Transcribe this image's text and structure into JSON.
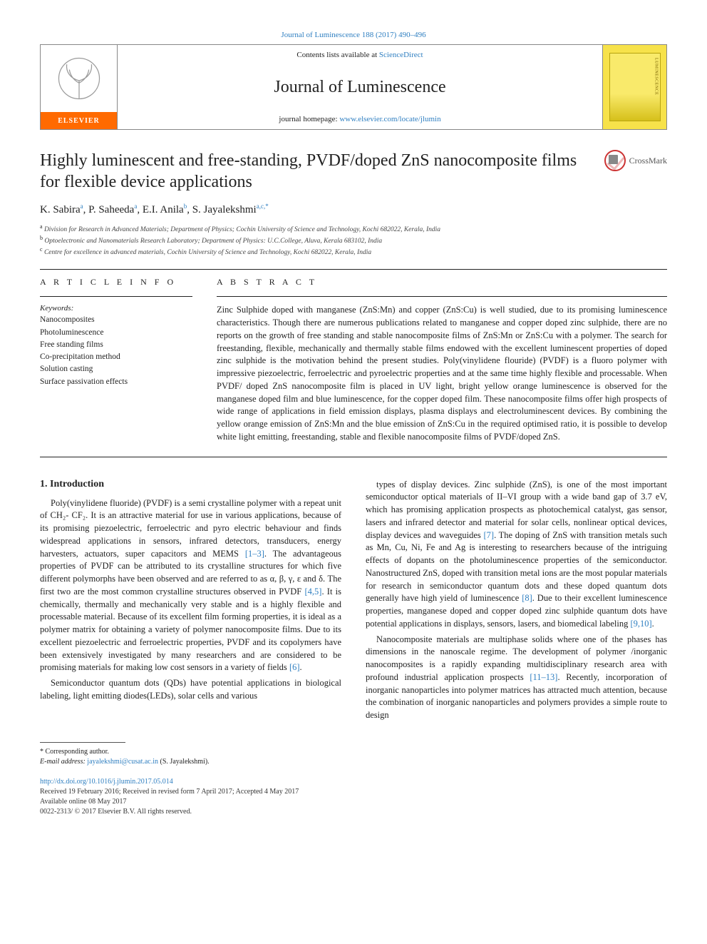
{
  "journal": {
    "citation_line": "Journal of Luminescence 188 (2017) 490–496",
    "contents_prefix": "Contents lists available at ",
    "contents_link": "ScienceDirect",
    "name": "Journal of Luminescence",
    "homepage_prefix": "journal homepage: ",
    "homepage_url": "www.elsevier.com/locate/jlumin",
    "publisher_logo": "ELSEVIER"
  },
  "crossmark_label": "CrossMark",
  "title": "Highly luminescent and free-standing, PVDF/doped ZnS nanocomposite films for flexible device applications",
  "authors_html": "K. Sabira<sup>a</sup>, P. Saheeda<sup>a</sup>, E.I. Anila<sup>b</sup>, S. Jayalekshmi<sup>a,c,*</sup>",
  "affiliations": [
    {
      "sup": "a",
      "text": "Division for Research in Advanced Materials; Department of Physics; Cochin University of Science and Technology, Kochi 682022, Kerala, India"
    },
    {
      "sup": "b",
      "text": "Optoelectronic and Nanomaterials Research Laboratory; Department of Physics: U.C.College, Aluva, Kerala 683102, India"
    },
    {
      "sup": "c",
      "text": "Centre for excellence in advanced materials, Cochin University of Science and Technology, Kochi 682022, Kerala, India"
    }
  ],
  "article_info": {
    "heading": "A R T I C L E  I N F O",
    "keywords_label": "Keywords:",
    "keywords": [
      "Nanocomposites",
      "Photoluminescence",
      "Free standing films",
      "Co-precipitation method",
      "Solution casting",
      "Surface passivation effects"
    ]
  },
  "abstract": {
    "heading": "A B S T R A C T",
    "text": "Zinc Sulphide doped with manganese (ZnS:Mn) and copper (ZnS:Cu) is well studied, due to its promising luminescence characteristics. Though there are numerous publications related to manganese and copper doped zinc sulphide, there are no reports on the growth of free standing and stable nanocomposite films of ZnS:Mn or ZnS:Cu with a polymer. The search for freestanding, flexible, mechanically and thermally stable films endowed with the excellent luminescent properties of doped zinc sulphide is the motivation behind the present studies. Poly(vinylidene flouride) (PVDF) is a fluoro polymer with impressive piezoelectric, ferroelectric and pyroelectric properties and at the same time highly flexible and processable. When PVDF/ doped ZnS nanocomposite film is placed in UV light, bright yellow orange luminescence is observed for the manganese doped film and blue luminescence, for the copper doped film. These nanocomposite films offer high prospects of wide range of applications in field emission displays, plasma displays and electroluminescent devices. By combining the yellow orange emission of ZnS:Mn and the blue emission of ZnS:Cu in the required optimised ratio, it is possible to develop white light emitting, freestanding, stable and flexible nanocomposite films of PVDF/doped ZnS."
  },
  "sections": {
    "intro_heading": "1. Introduction",
    "left_paras": [
      "Poly(vinylidene fluoride) (PVDF) is a semi crystalline polymer with a repeat unit of CH₂- CF₂. It is an attractive material for use in various applications, because of its promising piezoelectric, ferroelectric and pyro electric behaviour and finds widespread applications in sensors, infrared detectors, transducers, energy harvesters, actuators, super capacitors and MEMS [1–3]. The advantageous properties of PVDF can be attributed to its crystalline structures for which five different polymorphs have been observed and are referred to as α, β, γ, ε and δ. The first two are the most common crystalline structures observed in PVDF [4,5]. It is chemically, thermally and mechanically very stable and is a highly flexible and processable material. Because of its excellent film forming properties, it is ideal as a polymer matrix for obtaining a variety of polymer nanocomposite films. Due to its excellent piezoelectric and ferroelectric properties, PVDF and its copolymers have been extensively investigated by many researchers and are considered to be promising materials for making low cost sensors in a variety of fields [6].",
      "Semiconductor quantum dots (QDs) have potential applications in biological labeling, light emitting diodes(LEDs), solar cells and various"
    ],
    "right_paras": [
      "types of display devices. Zinc sulphide (ZnS), is one of the most important semiconductor optical materials of II–VI group with a wide band gap of 3.7 eV, which has promising application prospects as photochemical catalyst, gas sensor, lasers and infrared detector and material for solar cells, nonlinear optical devices, display devices and waveguides [7]. The doping of ZnS with transition metals such as Mn, Cu, Ni, Fe and Ag is interesting to researchers because of the intriguing effects of dopants on the photoluminescence properties of the semiconductor. Nanostructured ZnS, doped with transition metal ions are the most popular materials for research in semiconductor quantum dots and these doped quantum dots generally have high yield of luminescence [8]. Due to their excellent luminescence properties, manganese doped and copper doped zinc sulphide quantum dots have potential applications in displays, sensors, lasers, and biomedical labeling [9,10].",
      "Nanocomposite materials are multiphase solids where one of the phases has dimensions in the nanoscale regime. The development of polymer /inorganic nanocomposites is a rapidly expanding multidisciplinary research area with profound industrial application prospects [11–13]. Recently, incorporation of inorganic nanoparticles into polymer matrices has attracted much attention, because the combination of inorganic nanoparticles and polymers provides a simple route to design"
    ]
  },
  "footer": {
    "corr_label": "* Corresponding author.",
    "email_label": "E-mail address: ",
    "email": "jayalekshmi@cusat.ac.in",
    "email_suffix": " (S. Jayalekshmi).",
    "doi": "http://dx.doi.org/10.1016/j.jlumin.2017.05.014",
    "received": "Received 19 February 2016; Received in revised form 7 April 2017; Accepted 4 May 2017",
    "available": "Available online 08 May 2017",
    "issn": "0022-2313/ © 2017 Elsevier B.V. All rights reserved."
  },
  "colors": {
    "link": "#2f7fc1",
    "elsevier_orange": "#ff6a00",
    "cover_yellow": "#f7e24a",
    "rule": "#222222"
  }
}
